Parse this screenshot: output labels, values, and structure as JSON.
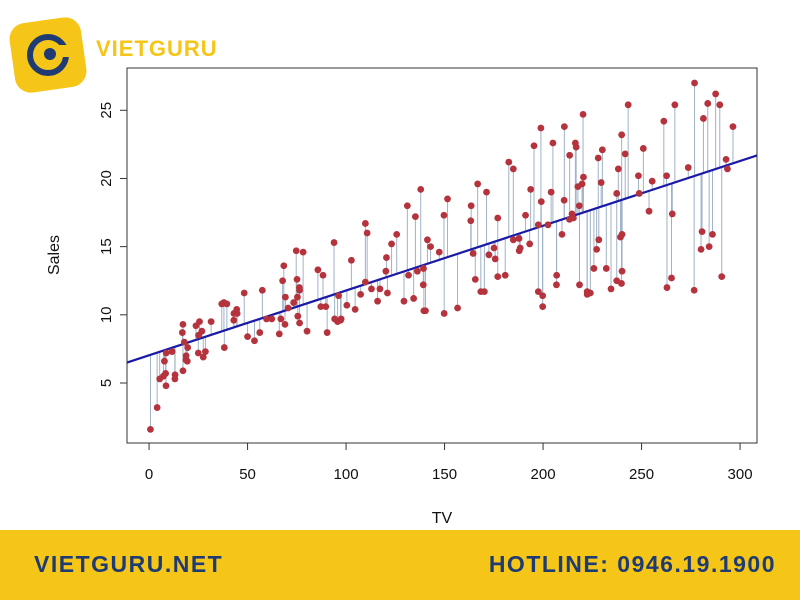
{
  "brand": "VIETGURU",
  "footer": {
    "website": "VIETGURU.NET",
    "hotline": "HOTLINE: 0946.19.1900"
  },
  "chart_data": {
    "type": "scatter",
    "x_label": "TV",
    "y_label": "Sales",
    "point_color": "#b5333d",
    "fit_color": "#1a1aa6",
    "residual_color": "#9fb2c8",
    "fit": {
      "intercept": 7.0326,
      "slope": 0.0475
    },
    "xlim": [
      -11.2,
      308.6
    ],
    "ylim": [
      0.6,
      28.1
    ],
    "xticks": [
      0,
      50,
      100,
      150,
      200,
      250,
      300
    ],
    "yticks": [
      5,
      10,
      15,
      20,
      25
    ],
    "x": [
      230.1,
      44.5,
      17.2,
      151.5,
      180.8,
      8.7,
      57.5,
      120.2,
      8.6,
      199.8,
      66.1,
      214.7,
      23.8,
      97.5,
      204.1,
      195.4,
      67.8,
      281.4,
      69.2,
      147.3,
      218.4,
      237.4,
      13.2,
      228.3,
      62.3,
      262.9,
      142.9,
      240.1,
      248.8,
      70.6,
      292.9,
      112.9,
      97.2,
      265.6,
      95.7,
      290.7,
      266.9,
      74.7,
      43.1,
      228,
      202.5,
      177,
      293.6,
      206.9,
      25.1,
      175.1,
      89.7,
      239.9,
      227.2,
      66.9,
      199.8,
      100.4,
      216.4,
      182.6,
      262.7,
      198.9,
      7.3,
      136.2,
      210.8,
      210.7,
      53.5,
      261.3,
      239.3,
      102.7,
      131.1,
      69,
      31.5,
      139.3,
      237.4,
      216.8,
      199.1,
      109.8,
      26.8,
      129.4,
      213.4,
      16.9,
      27.5,
      120.5,
      5.4,
      116,
      76.4,
      239.8,
      75.3,
      68.4,
      213.5,
      193.2,
      76.3,
      110.7,
      88.3,
      109.8,
      134.3,
      28.6,
      217.7,
      250.9,
      107.4,
      163.3,
      197.6,
      184.9,
      289.7,
      135.2,
      222.4,
      296.4,
      280.2,
      187.9,
      238.2,
      137.9,
      25,
      90.4,
      13.1,
      255.4,
      225.8,
      241.7,
      175.7,
      209.6,
      78.2,
      75.1,
      139.2,
      76.4,
      125.7,
      19.4,
      141.3,
      18.8,
      224,
      123.1,
      229.5,
      87.2,
      7.8,
      80.2,
      220.3,
      59.6,
      0.7,
      265.2,
      8.4,
      219.8,
      36.9,
      48.3,
      25.6,
      273.7,
      43,
      184.9,
      73.4,
      193.7,
      220.5,
      104.6,
      96.2,
      140.3,
      240.1,
      243.2,
      38,
      44.7,
      280.7,
      121,
      197.6,
      171.3,
      187.8,
      4.1,
      93.9,
      149.8,
      11.7,
      131.7,
      172.5,
      85.7,
      188.4,
      163.5,
      117.2,
      234.5,
      17.9,
      206.8,
      215.4,
      284.3,
      50,
      164.5,
      19.6,
      168.4,
      222.4,
      276.9,
      248.4,
      170.2,
      276.7,
      165.6,
      156.6,
      218.5,
      56.2,
      287.6,
      253.8,
      205,
      139.5,
      191.1,
      286,
      18.7,
      39.5,
      75.5,
      17.2,
      166.8,
      149.7,
      38.2,
      94.2,
      177,
      283.6,
      232.1
    ],
    "y": [
      22.1,
      10.4,
      9.3,
      18.5,
      12.9,
      7.2,
      11.8,
      13.2,
      4.8,
      10.6,
      8.6,
      17.4,
      9.2,
      9.7,
      19,
      22.4,
      12.5,
      24.4,
      11.3,
      14.6,
      18,
      12.5,
      5.6,
      15.5,
      9.7,
      12,
      15,
      15.9,
      18.9,
      10.5,
      21.4,
      11.9,
      9.6,
      17.4,
      9.5,
      12.8,
      25.4,
      14.7,
      10.1,
      21.5,
      16.6,
      17.1,
      20.7,
      12.9,
      8.5,
      14.9,
      10.6,
      23.2,
      14.8,
      9.7,
      11.4,
      10.7,
      22.6,
      21.2,
      20.2,
      23.7,
      5.5,
      13.2,
      23.8,
      18.4,
      8.1,
      24.2,
      15.7,
      14,
      18,
      9.3,
      9.5,
      13.4,
      18.9,
      22.3,
      18.3,
      12.4,
      8.8,
      11,
      17,
      8.7,
      6.9,
      14.2,
      5.3,
      11,
      11.8,
      12.3,
      11.3,
      13.6,
      21.7,
      15.2,
      12,
      16,
      12.9,
      16.7,
      11.2,
      7.3,
      19.4,
      22.2,
      11.5,
      16.9,
      11.7,
      15.5,
      25.4,
      17.2,
      11.7,
      23.8,
      14.8,
      14.7,
      20.7,
      19.2,
      7.2,
      8.7,
      5.3,
      19.8,
      13.4,
      21.8,
      14.1,
      15.9,
      14.6,
      12.6,
      12.2,
      9.4,
      15.9,
      6.6,
      15.5,
      7,
      11.6,
      15.2,
      19.7,
      10.6,
      6.6,
      8.8,
      24.7,
      9.7,
      1.6,
      12.7,
      5.7,
      19.6,
      10.8,
      11.6,
      9.5,
      20.8,
      9.6,
      20.7,
      10.9,
      19.2,
      20.1,
      10.4,
      11.4,
      10.3,
      13.2,
      25.4,
      10.9,
      10.1,
      16.1,
      11.6,
      16.6,
      19,
      15.6,
      3.2,
      15.3,
      10.1,
      7.3,
      12.9,
      14.4,
      13.3,
      14.9,
      18,
      11.9,
      11.9,
      8,
      12.2,
      17.1,
      15,
      8.4,
      14.5,
      7.6,
      11.7,
      11.5,
      27,
      20.2,
      11.7,
      11.8,
      12.6,
      10.5,
      12.2,
      8.7,
      26.2,
      17.6,
      22.6,
      10.3,
      17.3,
      15.9,
      6.7,
      10.8,
      9.9,
      5.9,
      19.6,
      17.3,
      7.6,
      9.7,
      12.8,
      25.5,
      13.4
    ]
  }
}
